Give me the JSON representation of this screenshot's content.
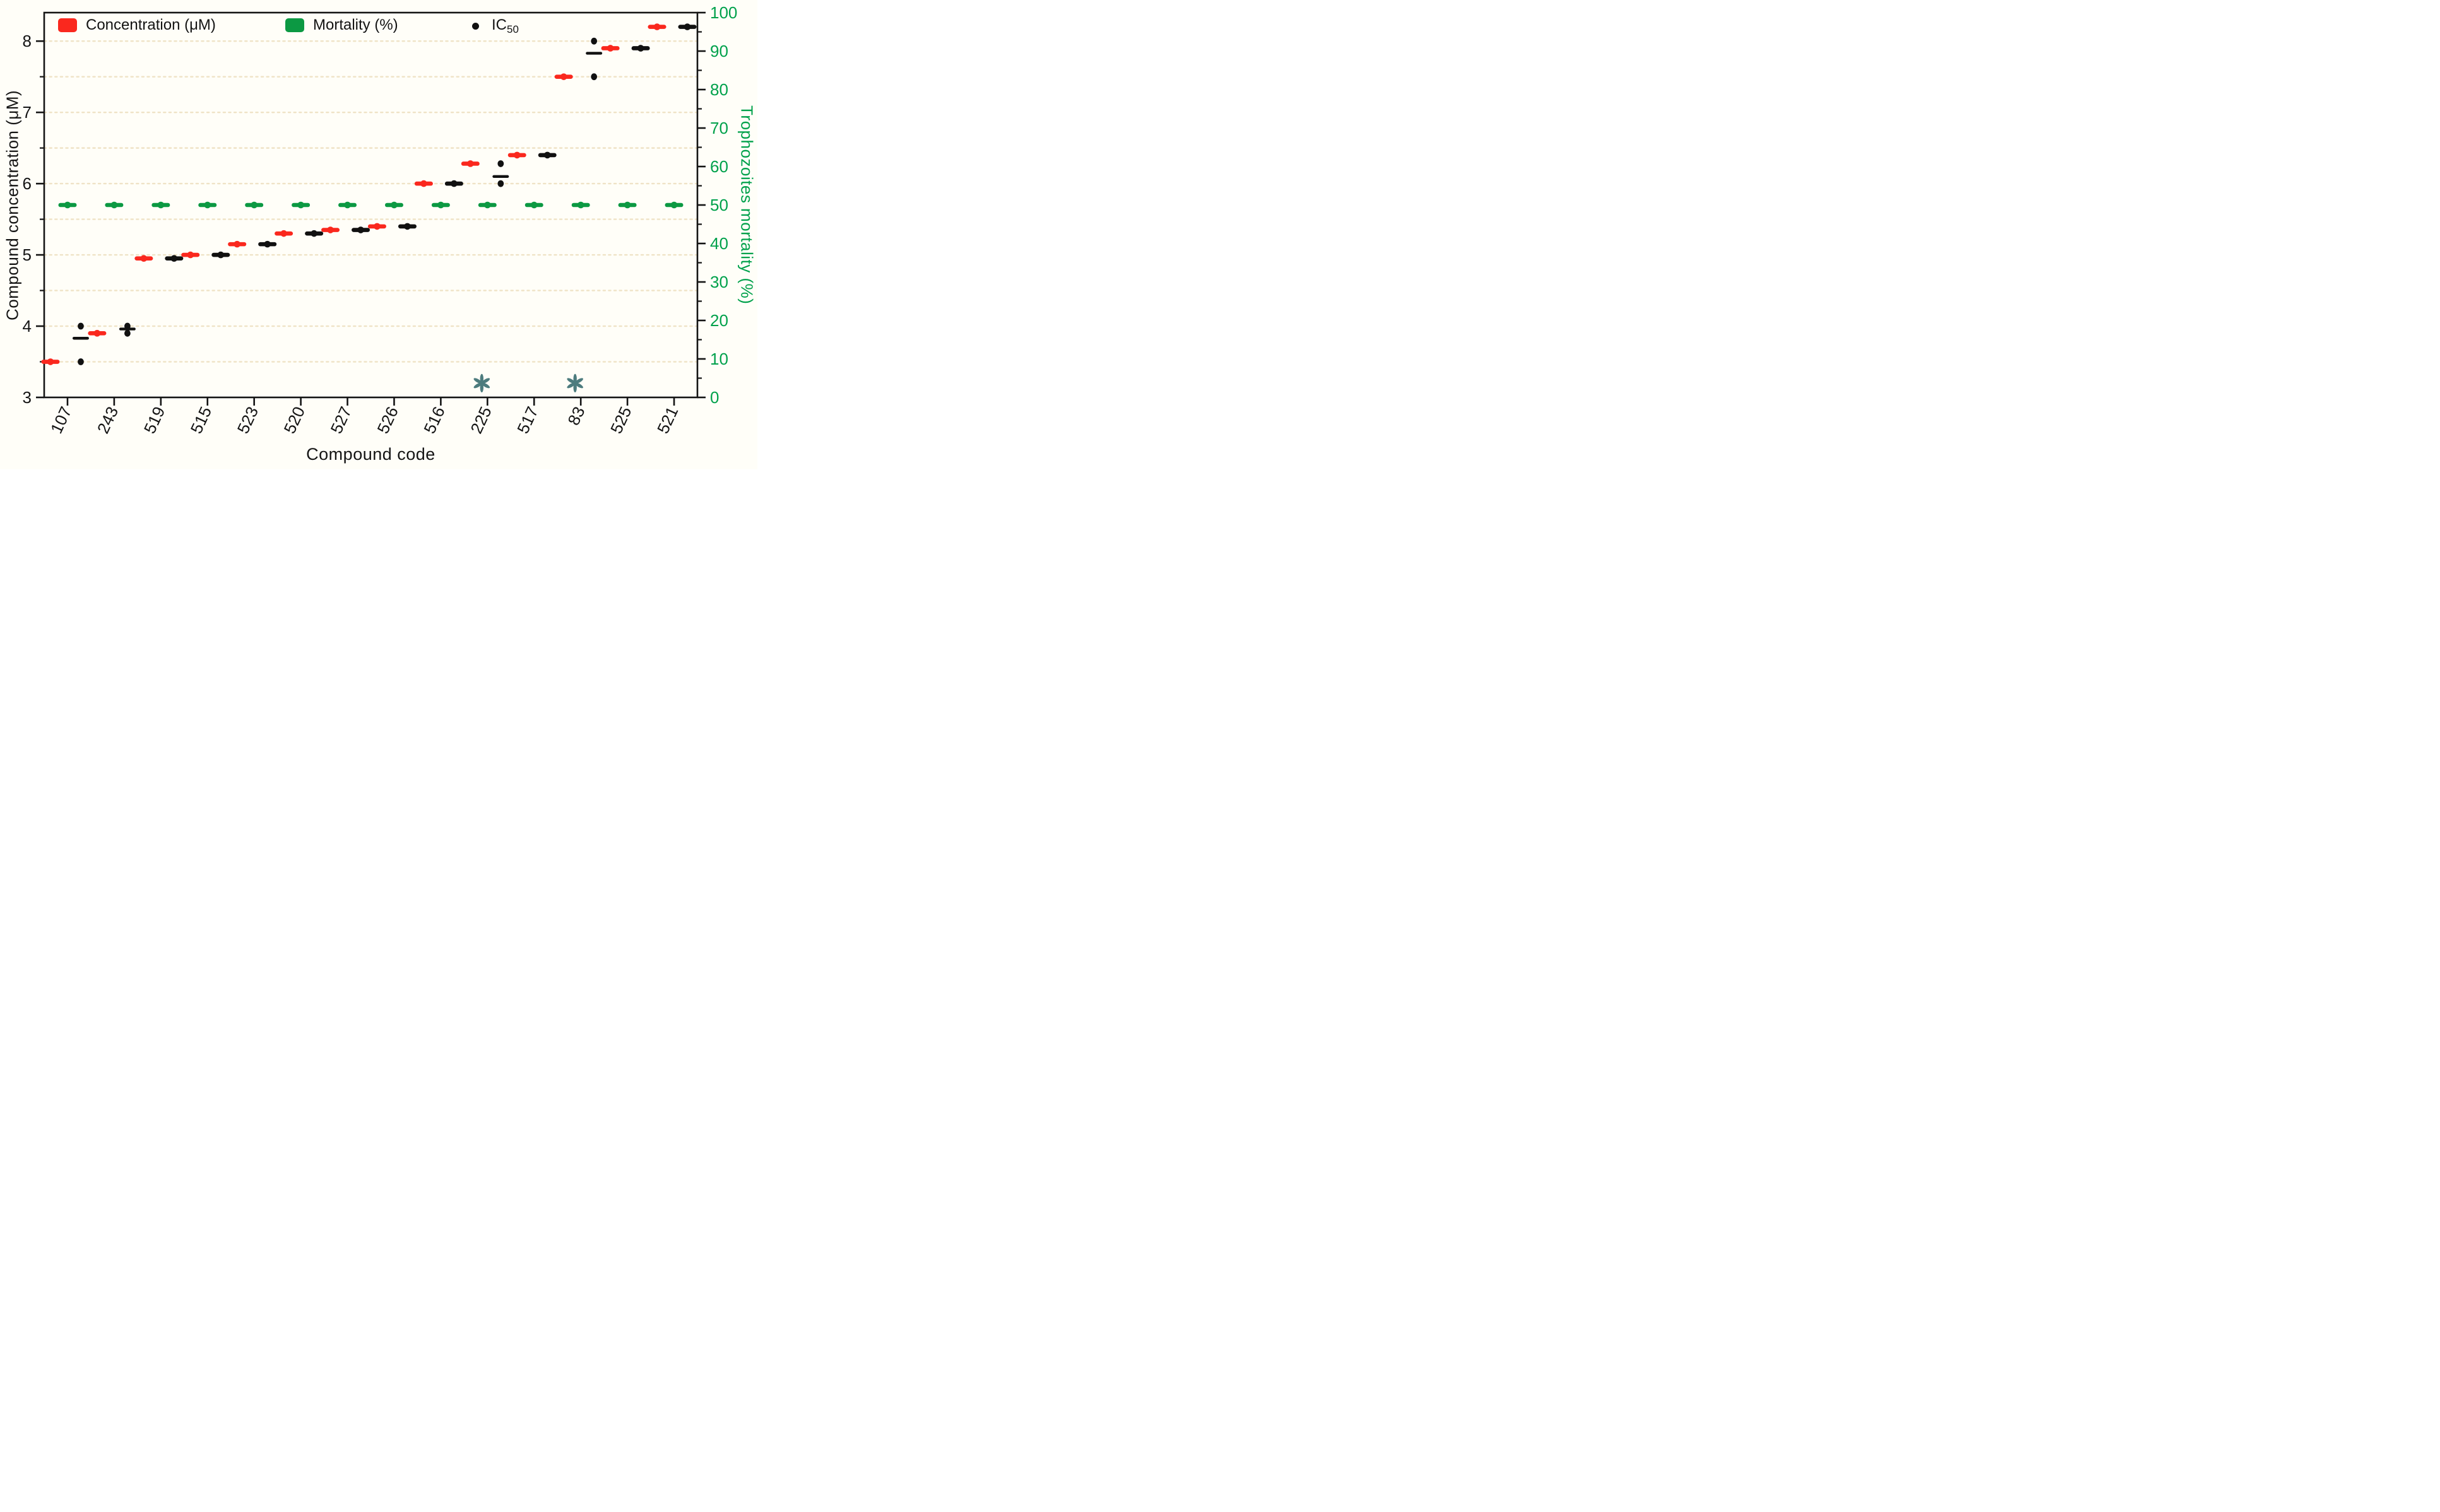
{
  "figure": {
    "background": "#FFFEF8",
    "axis_color": "#141414"
  },
  "legend": {
    "items": [
      {
        "type": "swatch",
        "label": "Concentration (μM)",
        "swatch_color": "#FA281E"
      },
      {
        "type": "swatch",
        "label": "Mortality (%)",
        "swatch_color": "#0C9943"
      },
      {
        "type": "dot",
        "label_main": "IC",
        "label_sub": "50",
        "marker_color": "#111111"
      }
    ]
  },
  "chart_data": {
    "type": "scatter",
    "title": "",
    "categories": [
      "107",
      "243",
      "519",
      "515",
      "523",
      "520",
      "527",
      "526",
      "516",
      "225",
      "517",
      "83",
      "525",
      "521"
    ],
    "series": [
      {
        "name": "Concentration (μM)",
        "axis": "left",
        "marker": "bar-dot",
        "color": "#FA281E",
        "values": [
          3.5,
          3.9,
          4.95,
          5.0,
          5.15,
          5.3,
          5.35,
          5.4,
          6.0,
          6.28,
          6.4,
          7.5,
          7.9,
          8.2
        ]
      },
      {
        "name": "Mortality (%)",
        "axis": "right",
        "marker": "bar-dot",
        "color": "#0C9943",
        "values": [
          50,
          50,
          50,
          50,
          50,
          50,
          50,
          50,
          50,
          50,
          50,
          50,
          50,
          50
        ]
      },
      {
        "name": "IC50",
        "axis": "left",
        "marker": "dots-mean",
        "color": "#111111",
        "points": [
          [
            4.0,
            3.5
          ],
          [
            4.0,
            3.9
          ],
          [
            4.95
          ],
          [
            5.0
          ],
          [
            5.15
          ],
          [
            5.3
          ],
          [
            5.35
          ],
          [
            5.4
          ],
          [
            6.0
          ],
          [
            6.28,
            6.0
          ],
          [
            6.4
          ],
          [
            8.0,
            7.5
          ],
          [
            7.9
          ],
          [
            8.2
          ]
        ],
        "means": [
          3.83,
          3.96,
          4.95,
          5.0,
          5.15,
          5.3,
          5.35,
          5.4,
          6.0,
          6.1,
          6.4,
          7.83,
          7.9,
          8.2
        ]
      }
    ],
    "x_axis": {
      "title": "Compound code",
      "label_rotation": -65
    },
    "y_axis_left": {
      "title": "Compound concentration (μM)",
      "min": 3,
      "max": 8.4,
      "major_ticks": [
        3,
        4,
        5,
        6,
        7,
        8
      ],
      "minor_ticks": [
        3.5,
        4.5,
        5.5,
        6.5,
        7.5
      ]
    },
    "y_axis_right": {
      "title": "Trophozoites mortality (%)",
      "min": 0,
      "max": 100,
      "major_step": 10,
      "minor_step": 5,
      "color": "#00A14B"
    },
    "grid": {
      "show": true,
      "from": 3.5,
      "to": 8.0,
      "step": 0.5,
      "color": "#EFE3C6",
      "style": "dotted"
    },
    "annotations": {
      "symbol": "six-petal-asterisk",
      "color": "#4D7C7E",
      "y_value": 3.2,
      "categories": [
        "225",
        "83"
      ]
    }
  }
}
